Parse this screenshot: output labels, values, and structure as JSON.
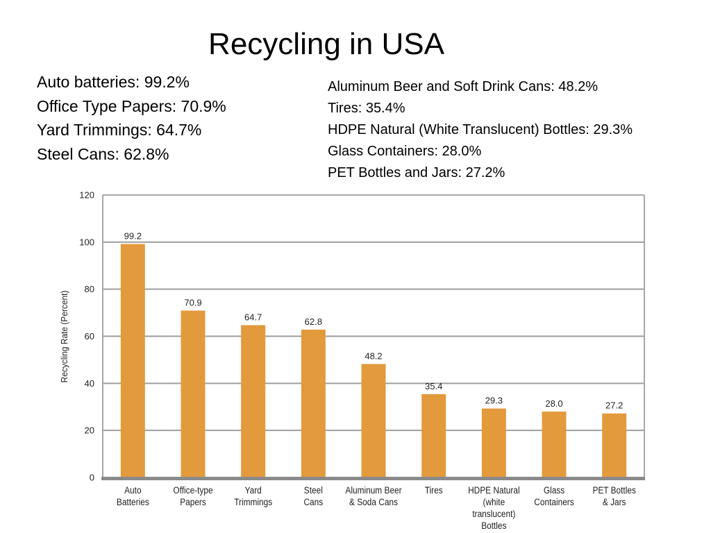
{
  "slide": {
    "title": "Recycling in USA",
    "facts_left": [
      "Auto batteries: 99.2%",
      "Office Type Papers: 70.9%",
      "Yard Trimmings: 64.7%",
      "Steel Cans: 62.8%"
    ],
    "facts_right": [
      "Aluminum Beer and Soft Drink Cans: 48.2%",
      "Tires: 35.4%",
      "HDPE Natural (White Translucent) Bottles: 29.3%",
      "Glass Containers: 28.0%",
      "PET Bottles and Jars: 27.2%"
    ]
  },
  "chart_data": {
    "type": "bar",
    "title": "",
    "xlabel": "",
    "ylabel": "Recycling Rate (Percent)",
    "ylim": [
      0,
      120
    ],
    "yticks": [
      0,
      20,
      40,
      60,
      80,
      100,
      120
    ],
    "grid": true,
    "legend": "none",
    "categories": [
      [
        "Auto",
        "Batteries"
      ],
      [
        "Office-type",
        "Papers"
      ],
      [
        "Yard",
        "Trimmings"
      ],
      [
        "Steel",
        "Cans"
      ],
      [
        "Aluminum Beer",
        "& Soda Cans"
      ],
      [
        "Tires"
      ],
      [
        "HDPE Natural",
        "(white",
        "translucent)",
        "Bottles"
      ],
      [
        "Glass",
        "Containers"
      ],
      [
        "PET Bottles",
        "& Jars"
      ]
    ],
    "values": [
      99.2,
      70.9,
      64.7,
      62.8,
      48.2,
      35.4,
      29.3,
      28.0,
      27.2
    ],
    "value_labels": [
      "99.2",
      "70.9",
      "64.7",
      "62.8",
      "48.2",
      "35.4",
      "29.3",
      "28.0",
      "27.2"
    ],
    "colors": {
      "bar": "#E39A3C",
      "grid": "#9E9E9E",
      "frame": "#A7A7A7",
      "axis": "#8A8A8A",
      "text": "#222222"
    }
  }
}
